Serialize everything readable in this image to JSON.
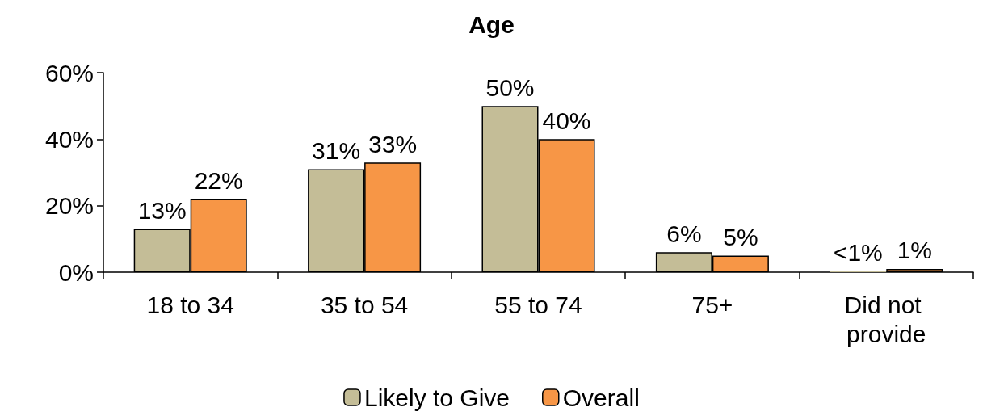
{
  "chart_data": {
    "type": "bar",
    "title": "Age",
    "categories": [
      "18 to 34",
      "35 to 54",
      "55 to 74",
      "75+",
      "Did not provide"
    ],
    "series": [
      {
        "name": "Likely to Give",
        "color": "#c4bd97",
        "values": [
          13,
          31,
          50,
          6,
          0.3
        ],
        "value_labels": [
          "13%",
          "31%",
          "50%",
          "6%",
          "<1%"
        ]
      },
      {
        "name": "Overall",
        "color": "#f79646",
        "values": [
          22,
          33,
          40,
          5,
          1
        ],
        "value_labels": [
          "22%",
          "33%",
          "40%",
          "5%",
          "1%"
        ]
      }
    ],
    "ylim": [
      0,
      60
    ],
    "yticks": [
      {
        "value": 0,
        "label": "0%"
      },
      {
        "value": 20,
        "label": "20%"
      },
      {
        "value": 40,
        "label": "40%"
      },
      {
        "value": 60,
        "label": "60%"
      }
    ],
    "grid": false,
    "legend": "bottom"
  }
}
